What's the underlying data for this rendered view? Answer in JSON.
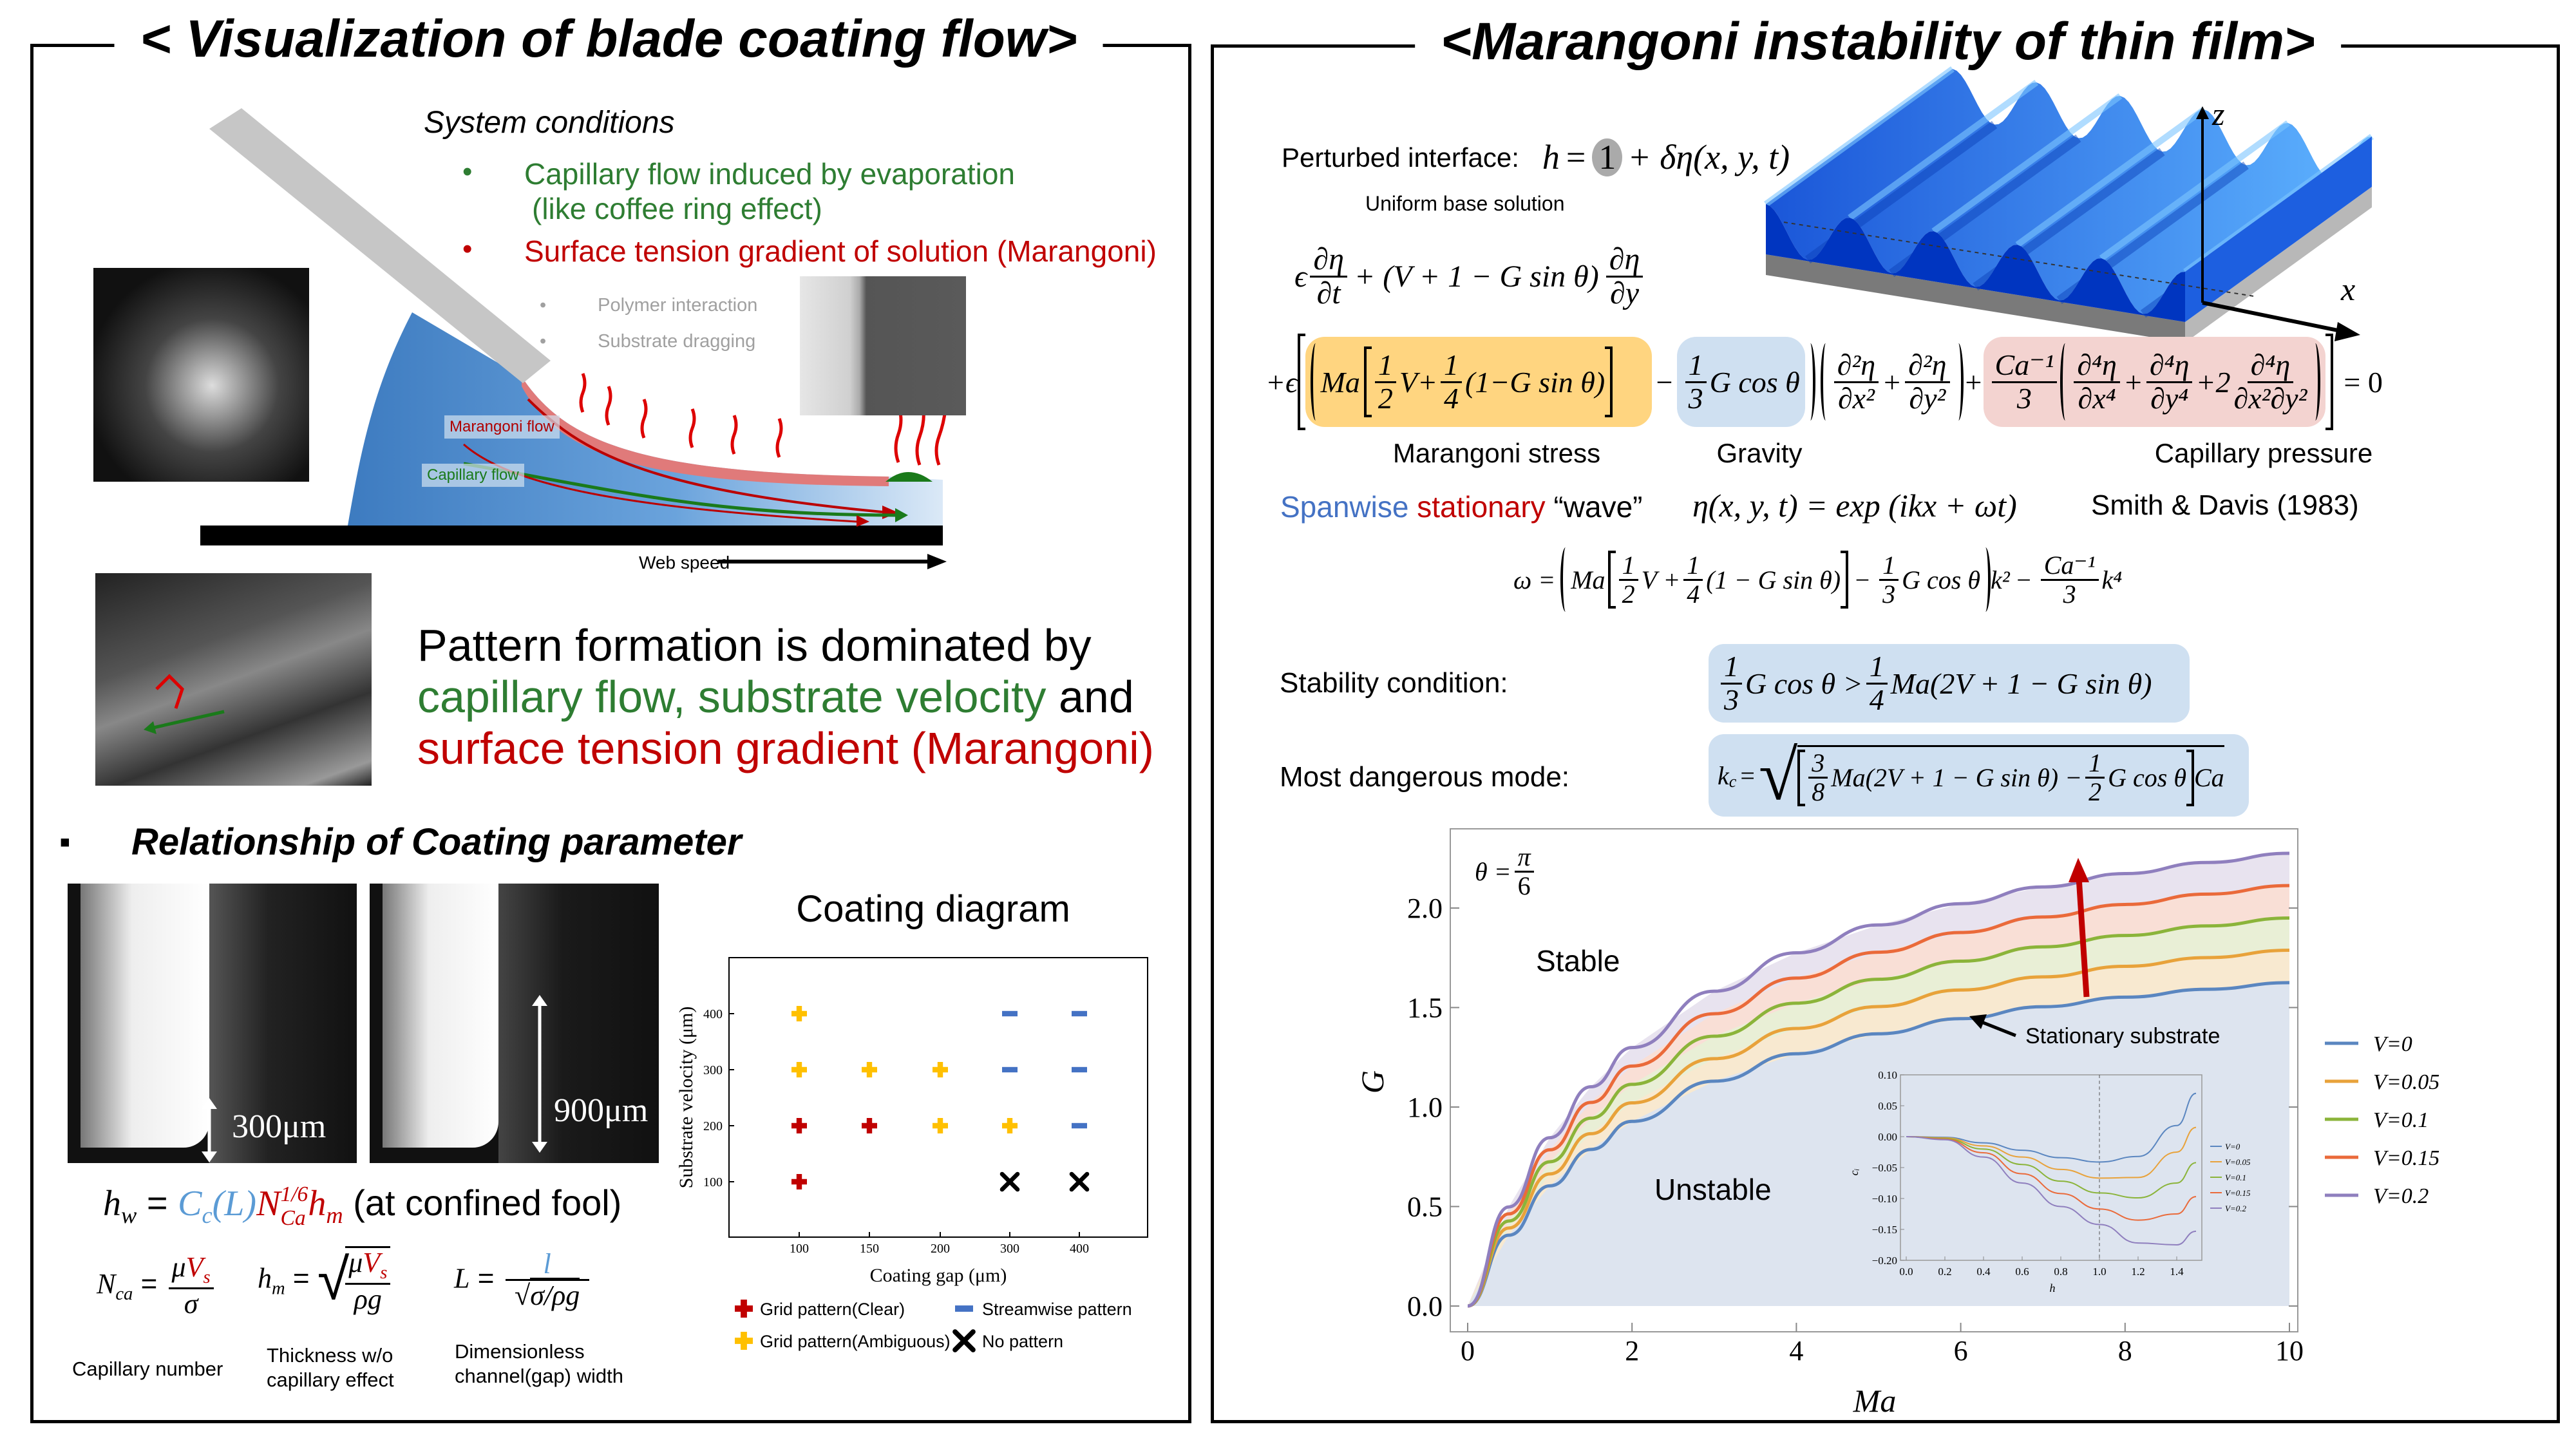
{
  "left_panel": {
    "title": "< Visualization of blade coating flow>",
    "system_conditions": {
      "heading": "System conditions",
      "bullet_char": "•",
      "bullets": [
        {
          "line1": "Capillary flow induced by evaporation",
          "line2": "(like coffee ring effect)",
          "color": "#2e7d32"
        },
        {
          "line1": "Surface tension gradient of solution (Marangoni)",
          "color": "#c00000"
        }
      ],
      "minor_bullets": [
        "Polymer interaction",
        "Substrate dragging"
      ]
    },
    "schematic": {
      "marangoni_label": "Marangoni flow",
      "capillary_label": "Capillary flow",
      "web_speed": "Web speed"
    },
    "pattern_text": {
      "line1": "Pattern formation is dominated by",
      "line2_green": "capillary flow, substrate velocity",
      "line2_black": " and",
      "line3_red": "surface tension gradient (Marangoni)"
    },
    "relationship": {
      "bullet": "▪",
      "heading": "Relationship of Coating parameter"
    },
    "photo_labels": [
      "300μm",
      "900μm"
    ],
    "formulas": {
      "hw": {
        "h": "h",
        "w": "w",
        "eq": "=",
        "Cc": "C",
        "c": "c",
        "L": "(L)",
        "N": "N",
        "Ca": "Ca",
        "exp": "1/6",
        "hm": "h",
        "m": "m",
        "note": "(at confined fool)"
      },
      "nca": {
        "N": "N",
        "sub": "ca",
        "eq": "=",
        "num_mu": "μ",
        "num_V": "V",
        "num_s": "s",
        "den": "σ",
        "label": "Capillary number"
      },
      "hm": {
        "h": "h",
        "sub": "m",
        "eq": "=",
        "num_mu": "μ",
        "num_V": "V",
        "num_s": "s",
        "den": "ρg",
        "label1": "Thickness w/o",
        "label2": "capillary effect"
      },
      "L": {
        "L": "L",
        "eq": "=",
        "num": "l",
        "den": "σ/ρg",
        "label1": "Dimensionless",
        "label2": "channel(gap) width"
      }
    }
  },
  "right_panel": {
    "title": "<Marangoni instability of thin film>",
    "perturbed": {
      "label": "Perturbed interface:",
      "h": "h",
      "eq": "=",
      "one": "1",
      "rest": "+ δη(x, y, t)",
      "base_label": "Uniform base solution"
    },
    "axes": {
      "z": "z",
      "x": "x"
    },
    "eq1": {
      "eps": "ϵ",
      "n1": "∂η",
      "d1": "∂t",
      "mid": "+ (V + 1 − G sin θ)",
      "n2": "∂η",
      "d2": "∂y"
    },
    "eq2": {
      "lead": "+ϵ",
      "Ma": "Ma",
      "h1n": "1",
      "h1d": "2",
      "V": "V+",
      "q1n": "1",
      "q1d": "4",
      "sinterm": "(1−G sin θ)",
      "minus": "−",
      "t1n": "1",
      "t1d": "3",
      "gcos": "G cos θ",
      "a1n": "∂²η",
      "a1d": "∂x²",
      "plus": "+",
      "a2n": "∂²η",
      "a2d": "∂y²",
      "plus2": "+",
      "can": "Ca⁻¹",
      "cad": "3",
      "b1n": "∂⁴η",
      "b1d": "∂x⁴",
      "plus3": "+",
      "b2n": "∂⁴η",
      "b2d": "∂y⁴",
      "plus4": "+2",
      "b3n": "∂⁴η",
      "b3d": "∂x²∂y²",
      "eq0": "= 0",
      "labels": {
        "marangoni": "Marangoni stress",
        "gravity": "Gravity",
        "capillary": "Capillary pressure"
      },
      "colors": {
        "marangoni": "#ffd580",
        "gravity": "#cfe0f1",
        "capillary": "#f3d3d0"
      }
    },
    "wave": {
      "spanwise": "Spanwise",
      "stationary": "stationary",
      "wave": " “wave”",
      "eq": "η(x, y, t) = exp (ikx + ωt)",
      "ref": "Smith & Davis (1983)"
    },
    "omega": {
      "lhs": "ω =",
      "Ma": "Ma",
      "h1n": "1",
      "h1d": "2",
      "V": "V +",
      "q1n": "1",
      "q1d": "4",
      "sinterm": "(1 − G sin θ)",
      "minus": "−",
      "t1n": "1",
      "t1d": "3",
      "gcos": "G cos θ",
      "k2": "k²",
      "minus2": "−",
      "can": "Ca⁻¹",
      "cad": "3",
      "k4": "k⁴"
    },
    "stability": {
      "label": "Stability condition:",
      "n1": "1",
      "d1": "3",
      "lhs": "G cos θ >",
      "n2": "1",
      "d2": "4",
      "rhs": "Ma(2V + 1 − G sin θ)"
    },
    "dangerous": {
      "label": "Most dangerous mode:",
      "kc": "k",
      "c": "c",
      "eq": "=",
      "n1": "3",
      "d1": "8",
      "t1": "Ma(2V + 1 − G sin θ) −",
      "n2": "1",
      "d2": "2",
      "t2": "G cos θ",
      "ca": "Ca"
    }
  },
  "chart_data": [
    {
      "id": "coating_diagram",
      "type": "scatter",
      "title": "Coating diagram",
      "xlabel": "Coating gap (μm)",
      "ylabel": "Substrate velocity (μm)",
      "x_categories": [
        "100",
        "150",
        "200",
        "300",
        "400"
      ],
      "y_ticks": [
        100,
        200,
        300,
        400
      ],
      "points": [
        {
          "gap": "100",
          "velocity": 400,
          "type": "ambiguous"
        },
        {
          "gap": "100",
          "velocity": 300,
          "type": "ambiguous"
        },
        {
          "gap": "150",
          "velocity": 300,
          "type": "ambiguous"
        },
        {
          "gap": "200",
          "velocity": 300,
          "type": "ambiguous"
        },
        {
          "gap": "200",
          "velocity": 200,
          "type": "ambiguous"
        },
        {
          "gap": "300",
          "velocity": 200,
          "type": "ambiguous"
        },
        {
          "gap": "100",
          "velocity": 200,
          "type": "clear"
        },
        {
          "gap": "150",
          "velocity": 200,
          "type": "clear"
        },
        {
          "gap": "100",
          "velocity": 100,
          "type": "clear"
        },
        {
          "gap": "300",
          "velocity": 400,
          "type": "streamwise"
        },
        {
          "gap": "400",
          "velocity": 400,
          "type": "streamwise"
        },
        {
          "gap": "300",
          "velocity": 300,
          "type": "streamwise"
        },
        {
          "gap": "400",
          "velocity": 300,
          "type": "streamwise"
        },
        {
          "gap": "400",
          "velocity": 200,
          "type": "streamwise"
        },
        {
          "gap": "300",
          "velocity": 100,
          "type": "none"
        },
        {
          "gap": "400",
          "velocity": 100,
          "type": "none"
        }
      ],
      "legend": [
        {
          "type": "clear",
          "label": "Grid pattern(Clear)",
          "color": "#c00000"
        },
        {
          "type": "streamwise",
          "label": "Streamwise pattern",
          "color": "#4472c4"
        },
        {
          "type": "ambiguous",
          "label": "Grid pattern(Ambiguous)",
          "color": "#ffc000"
        },
        {
          "type": "none",
          "label": "No pattern",
          "color": "#000000"
        }
      ]
    },
    {
      "id": "stability_map",
      "type": "line",
      "xlabel": "Ma",
      "ylabel": "G",
      "xlim": [
        0,
        10
      ],
      "ylim": [
        0,
        2.35
      ],
      "x_ticks": [
        0,
        2,
        4,
        6,
        8,
        10
      ],
      "y_ticks": [
        "0.0",
        "0.5",
        "1.0",
        "1.5",
        "2.0"
      ],
      "annotation_theta": {
        "lhs": "θ =",
        "num": "π",
        "den": "6"
      },
      "region_labels": {
        "stable": "Stable",
        "unstable": "Unstable"
      },
      "arrow_label": "Stationary substrate",
      "legend_position": "right",
      "x": [
        0,
        0.5,
        1,
        1.5,
        2,
        3,
        4,
        5,
        6,
        7,
        8,
        9,
        10
      ],
      "series": [
        {
          "name": "V=0",
          "color": "#5a86c0",
          "fill": "#dde4ef",
          "values": [
            0,
            0.356,
            0.604,
            0.787,
            0.928,
            1.13,
            1.268,
            1.368,
            1.444,
            1.504,
            1.552,
            1.592,
            1.625
          ]
        },
        {
          "name": "V=0.05",
          "color": "#e8a23a",
          "fill": "#f8e9d0",
          "values": [
            0,
            0.392,
            0.664,
            0.866,
            1.021,
            1.243,
            1.395,
            1.505,
            1.588,
            1.654,
            1.707,
            1.751,
            1.788
          ]
        },
        {
          "name": "V=0.1",
          "color": "#8bb43a",
          "fill": "#e9efd6",
          "values": [
            0,
            0.427,
            0.725,
            0.944,
            1.114,
            1.356,
            1.522,
            1.642,
            1.733,
            1.805,
            1.862,
            1.91,
            1.95
          ]
        },
        {
          "name": "V=0.15",
          "color": "#ea6a3a",
          "fill": "#f9dfd6",
          "values": [
            0,
            0.463,
            0.785,
            1.023,
            1.206,
            1.469,
            1.648,
            1.778,
            1.877,
            1.955,
            2.018,
            2.07,
            2.113
          ]
        },
        {
          "name": "V=0.2",
          "color": "#8f7fbe",
          "fill": "#e8e3ef",
          "values": [
            0,
            0.498,
            0.846,
            1.102,
            1.299,
            1.582,
            1.775,
            1.915,
            2.022,
            2.106,
            2.173,
            2.229,
            2.275
          ]
        }
      ]
    },
    {
      "id": "inset_growth_rate",
      "type": "line",
      "xlabel": "h",
      "ylabel": "cᵢ",
      "xlim": [
        0,
        1.5
      ],
      "ylim": [
        -0.2,
        0.1
      ],
      "x_ticks": [
        "0.0",
        "0.2",
        "0.4",
        "0.6",
        "0.8",
        "1.0",
        "1.2",
        "1.4"
      ],
      "y_ticks": [
        "0.10",
        "0.05",
        "0.00",
        "−0.05",
        "−0.10",
        "−0.15",
        "−0.20"
      ],
      "vline_x": 1.0,
      "x": [
        0,
        0.2,
        0.4,
        0.6,
        0.8,
        1.0,
        1.2,
        1.4,
        1.5
      ],
      "series": [
        {
          "name": "V=0",
          "color": "#5a86c0",
          "values": [
            0,
            -0.001,
            -0.01,
            -0.022,
            -0.034,
            -0.041,
            -0.032,
            0.018,
            0.07
          ]
        },
        {
          "name": "V=0.05",
          "color": "#e8a23a",
          "values": [
            0,
            -0.002,
            -0.015,
            -0.033,
            -0.053,
            -0.067,
            -0.066,
            -0.025,
            0.015
          ]
        },
        {
          "name": "V=0.1",
          "color": "#8bb43a",
          "values": [
            0,
            -0.003,
            -0.02,
            -0.045,
            -0.072,
            -0.091,
            -0.099,
            -0.075,
            -0.042
          ]
        },
        {
          "name": "V=0.15",
          "color": "#ea6a3a",
          "values": [
            0,
            -0.004,
            -0.026,
            -0.06,
            -0.092,
            -0.117,
            -0.135,
            -0.125,
            -0.097
          ]
        },
        {
          "name": "V=0.2",
          "color": "#8f7fbe",
          "values": [
            0,
            -0.005,
            -0.033,
            -0.075,
            -0.113,
            -0.142,
            -0.172,
            -0.175,
            -0.153
          ]
        }
      ]
    }
  ]
}
